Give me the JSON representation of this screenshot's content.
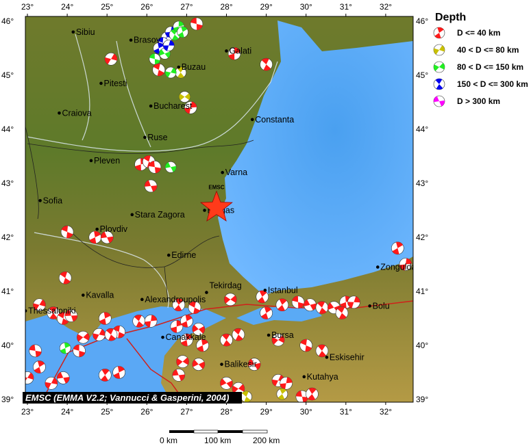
{
  "legend": {
    "title": "Depth",
    "items": [
      {
        "label": "D <= 40 km",
        "color": "#ff1a1a"
      },
      {
        "label": "40 < D <= 80 km",
        "color": "#c8c000"
      },
      {
        "label": "80 < D <= 150 km",
        "color": "#22ee22"
      },
      {
        "label": "150 < D <= 300 km",
        "color": "#0000ee"
      },
      {
        "label": "D > 300 km",
        "color": "#ff00ff"
      }
    ]
  },
  "axes": {
    "lon_ticks": [
      "23°",
      "24°",
      "25°",
      "26°",
      "27°",
      "28°",
      "29°",
      "30°",
      "31°",
      "32°"
    ],
    "lat_ticks": [
      "46°",
      "45°",
      "44°",
      "43°",
      "42°",
      "41°",
      "40°",
      "39°"
    ],
    "lon_range": [
      22.95,
      32.6
    ],
    "lat_range": [
      38.95,
      46.1
    ]
  },
  "cities": [
    {
      "name": "Sibiu",
      "lon": 24.15,
      "lat": 45.8
    },
    {
      "name": "Brasov",
      "lon": 25.6,
      "lat": 45.65
    },
    {
      "name": "Galati",
      "lon": 28.0,
      "lat": 45.45
    },
    {
      "name": "Buzau",
      "lon": 26.8,
      "lat": 45.15
    },
    {
      "name": "Pitesti",
      "lon": 24.85,
      "lat": 44.85
    },
    {
      "name": "Craiova",
      "lon": 23.8,
      "lat": 44.3
    },
    {
      "name": "Bucharest",
      "lon": 26.1,
      "lat": 44.43
    },
    {
      "name": "Constanta",
      "lon": 28.65,
      "lat": 44.18
    },
    {
      "name": "Ruse",
      "lon": 25.95,
      "lat": 43.85
    },
    {
      "name": "Pleven",
      "lon": 24.6,
      "lat": 43.42
    },
    {
      "name": "Varna",
      "lon": 27.9,
      "lat": 43.2
    },
    {
      "name": "Sofia",
      "lon": 23.32,
      "lat": 42.68
    },
    {
      "name": "Stara Zagora",
      "lon": 25.63,
      "lat": 42.42
    },
    {
      "name": "Burgas",
      "lon": 27.45,
      "lat": 42.5
    },
    {
      "name": "Plovdiv",
      "lon": 24.75,
      "lat": 42.15
    },
    {
      "name": "Edirne",
      "lon": 26.55,
      "lat": 41.67
    },
    {
      "name": "Zonguldak",
      "lon": 31.8,
      "lat": 41.45
    },
    {
      "name": "Kavalla",
      "lon": 24.4,
      "lat": 40.93
    },
    {
      "name": "Alexandroupolis",
      "lon": 25.88,
      "lat": 40.85
    },
    {
      "name": "Tekirdag",
      "lon": 27.5,
      "lat": 40.98
    },
    {
      "name": "Istanbul",
      "lon": 28.97,
      "lat": 41.02
    },
    {
      "name": "Bolu",
      "lon": 31.6,
      "lat": 40.73
    },
    {
      "name": "Thessaloniki",
      "lon": 22.95,
      "lat": 40.64
    },
    {
      "name": "Canakkale",
      "lon": 26.4,
      "lat": 40.15
    },
    {
      "name": "Bursa",
      "lon": 29.06,
      "lat": 40.19
    },
    {
      "name": "Eskisehir",
      "lon": 30.52,
      "lat": 39.78
    },
    {
      "name": "Balikesir",
      "lon": 27.88,
      "lat": 39.65
    },
    {
      "name": "Kutahya",
      "lon": 29.95,
      "lat": 39.42
    }
  ],
  "epicenter": {
    "label": "EMSC",
    "lon": 27.75,
    "lat": 42.55
  },
  "events": [
    {
      "lon": 26.5,
      "lat": 45.7,
      "d": 3
    },
    {
      "lon": 26.6,
      "lat": 45.8,
      "d": 3
    },
    {
      "lon": 26.4,
      "lat": 45.6,
      "d": 3
    },
    {
      "lon": 26.7,
      "lat": 45.75,
      "d": 2
    },
    {
      "lon": 26.3,
      "lat": 45.5,
      "d": 3
    },
    {
      "lon": 26.8,
      "lat": 45.9,
      "d": 2
    },
    {
      "lon": 26.2,
      "lat": 45.3,
      "d": 2
    },
    {
      "lon": 26.45,
      "lat": 45.4,
      "d": 2
    },
    {
      "lon": 26.55,
      "lat": 45.55,
      "d": 3
    },
    {
      "lon": 26.9,
      "lat": 45.8,
      "d": 2
    },
    {
      "lon": 26.85,
      "lat": 45.05,
      "d": 1
    },
    {
      "lon": 26.95,
      "lat": 44.6,
      "d": 1
    },
    {
      "lon": 26.6,
      "lat": 45.05,
      "d": 2
    },
    {
      "lon": 27.25,
      "lat": 45.95,
      "d": 0
    },
    {
      "lon": 28.2,
      "lat": 45.4,
      "d": 0
    },
    {
      "lon": 29.0,
      "lat": 45.2,
      "d": 0
    },
    {
      "lon": 25.1,
      "lat": 45.3,
      "d": 0
    },
    {
      "lon": 26.3,
      "lat": 45.1,
      "d": 0
    },
    {
      "lon": 27.1,
      "lat": 44.4,
      "d": 0
    },
    {
      "lon": 25.85,
      "lat": 43.35,
      "d": 0
    },
    {
      "lon": 26.05,
      "lat": 43.4,
      "d": 0
    },
    {
      "lon": 26.2,
      "lat": 43.3,
      "d": 0
    },
    {
      "lon": 26.6,
      "lat": 43.3,
      "d": 2
    },
    {
      "lon": 26.1,
      "lat": 42.95,
      "d": 0
    },
    {
      "lon": 24.0,
      "lat": 42.1,
      "d": 0
    },
    {
      "lon": 24.7,
      "lat": 42.0,
      "d": 0
    },
    {
      "lon": 25.0,
      "lat": 42.0,
      "d": 0
    },
    {
      "lon": 23.95,
      "lat": 41.25,
      "d": 0
    },
    {
      "lon": 32.3,
      "lat": 41.8,
      "d": 0
    },
    {
      "lon": 32.5,
      "lat": 41.5,
      "d": 0
    },
    {
      "lon": 23.3,
      "lat": 40.75,
      "d": 0
    },
    {
      "lon": 23.65,
      "lat": 40.6,
      "d": 0
    },
    {
      "lon": 23.9,
      "lat": 40.5,
      "d": 0
    },
    {
      "lon": 24.1,
      "lat": 40.55,
      "d": 0
    },
    {
      "lon": 24.95,
      "lat": 40.5,
      "d": 0
    },
    {
      "lon": 25.8,
      "lat": 40.45,
      "d": 0
    },
    {
      "lon": 26.1,
      "lat": 40.45,
      "d": 0
    },
    {
      "lon": 26.8,
      "lat": 40.75,
      "d": 0
    },
    {
      "lon": 27.2,
      "lat": 40.7,
      "d": 0
    },
    {
      "lon": 28.1,
      "lat": 40.85,
      "d": 0
    },
    {
      "lon": 28.9,
      "lat": 40.9,
      "d": 0
    },
    {
      "lon": 29.4,
      "lat": 40.75,
      "d": 0
    },
    {
      "lon": 29.8,
      "lat": 40.8,
      "d": 0
    },
    {
      "lon": 30.1,
      "lat": 40.75,
      "d": 0
    },
    {
      "lon": 30.4,
      "lat": 40.7,
      "d": 0
    },
    {
      "lon": 30.7,
      "lat": 40.7,
      "d": 0
    },
    {
      "lon": 31.0,
      "lat": 40.8,
      "d": 0
    },
    {
      "lon": 30.9,
      "lat": 40.6,
      "d": 0
    },
    {
      "lon": 31.2,
      "lat": 40.8,
      "d": 0
    },
    {
      "lon": 29.0,
      "lat": 40.6,
      "d": 0
    },
    {
      "lon": 24.4,
      "lat": 40.15,
      "d": 0
    },
    {
      "lon": 24.8,
      "lat": 40.2,
      "d": 0
    },
    {
      "lon": 25.3,
      "lat": 40.25,
      "d": 0
    },
    {
      "lon": 25.1,
      "lat": 40.2,
      "d": 0
    },
    {
      "lon": 23.95,
      "lat": 39.95,
      "d": 2
    },
    {
      "lon": 24.3,
      "lat": 39.9,
      "d": 0
    },
    {
      "lon": 23.2,
      "lat": 39.9,
      "d": 0
    },
    {
      "lon": 23.3,
      "lat": 39.6,
      "d": 0
    },
    {
      "lon": 23.0,
      "lat": 39.4,
      "d": 0
    },
    {
      "lon": 23.6,
      "lat": 39.3,
      "d": 0
    },
    {
      "lon": 23.9,
      "lat": 39.4,
      "d": 0
    },
    {
      "lon": 24.95,
      "lat": 39.45,
      "d": 0
    },
    {
      "lon": 25.3,
      "lat": 39.5,
      "d": 0
    },
    {
      "lon": 26.75,
      "lat": 40.35,
      "d": 0
    },
    {
      "lon": 27.0,
      "lat": 40.45,
      "d": 0
    },
    {
      "lon": 27.3,
      "lat": 40.3,
      "d": 0
    },
    {
      "lon": 27.0,
      "lat": 40.1,
      "d": 0
    },
    {
      "lon": 27.4,
      "lat": 40.0,
      "d": 0
    },
    {
      "lon": 28.0,
      "lat": 40.1,
      "d": 0
    },
    {
      "lon": 28.3,
      "lat": 40.2,
      "d": 0
    },
    {
      "lon": 29.3,
      "lat": 40.1,
      "d": 0
    },
    {
      "lon": 30.0,
      "lat": 40.0,
      "d": 0
    },
    {
      "lon": 30.4,
      "lat": 39.9,
      "d": 0
    },
    {
      "lon": 26.9,
      "lat": 39.7,
      "d": 0
    },
    {
      "lon": 27.3,
      "lat": 39.65,
      "d": 0
    },
    {
      "lon": 26.8,
      "lat": 39.45,
      "d": 0
    },
    {
      "lon": 28.7,
      "lat": 39.65,
      "d": 0
    },
    {
      "lon": 28.0,
      "lat": 39.3,
      "d": 0
    },
    {
      "lon": 28.3,
      "lat": 39.2,
      "d": 0
    },
    {
      "lon": 29.3,
      "lat": 39.35,
      "d": 0
    },
    {
      "lon": 29.5,
      "lat": 39.3,
      "d": 0
    },
    {
      "lon": 29.9,
      "lat": 39.05,
      "d": 0
    },
    {
      "lon": 30.15,
      "lat": 39.1,
      "d": 0
    },
    {
      "lon": 29.4,
      "lat": 39.1,
      "d": 1
    },
    {
      "lon": 28.5,
      "lat": 39.05,
      "d": 1
    }
  ],
  "credit": "EMSC (EMMA V2.2; Vannucci & Gasperini, 2004)",
  "scale_bar": {
    "labels": [
      "0 km",
      "100 km",
      "200 km"
    ]
  }
}
